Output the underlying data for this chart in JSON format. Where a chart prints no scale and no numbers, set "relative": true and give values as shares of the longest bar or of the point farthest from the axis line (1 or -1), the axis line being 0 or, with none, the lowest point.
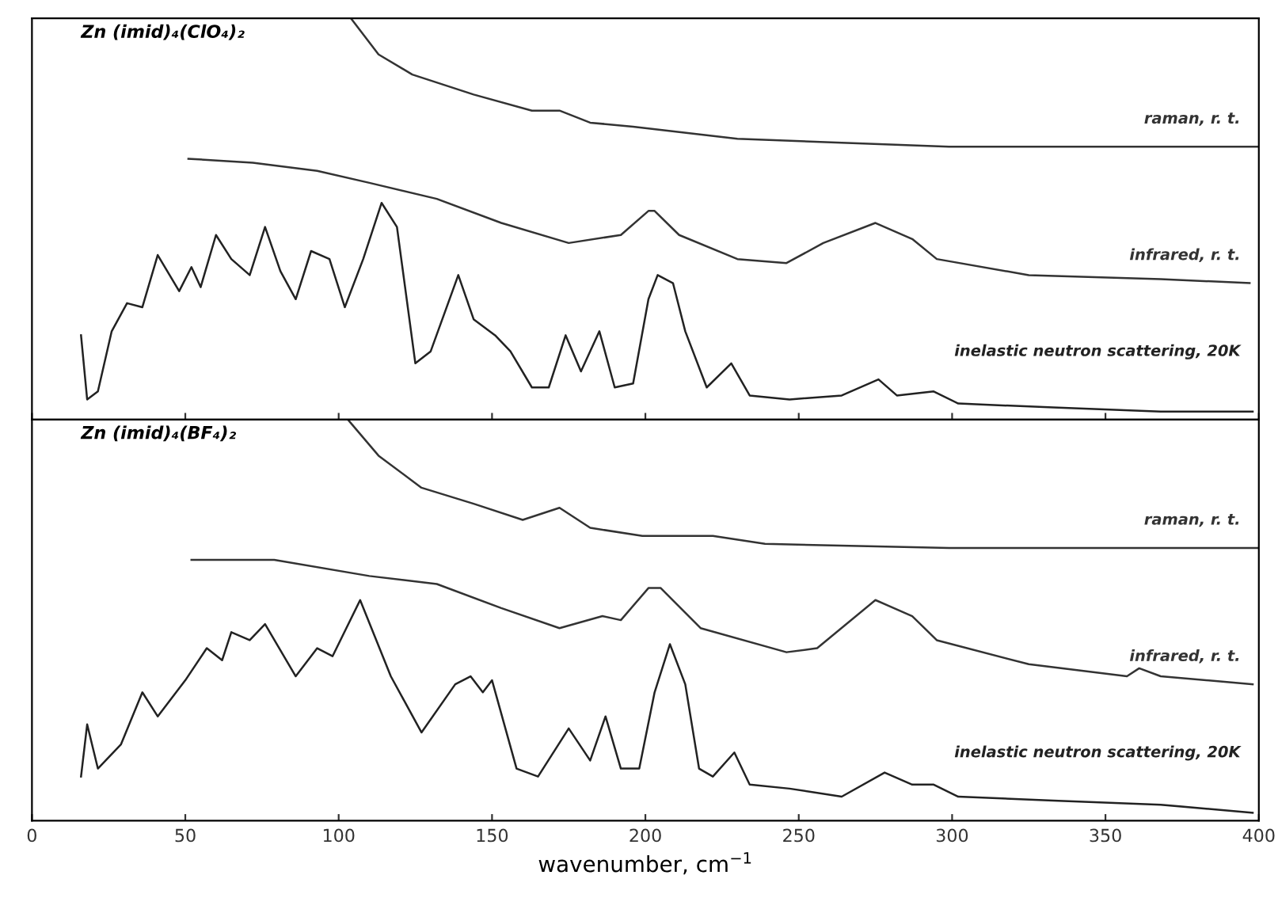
{
  "chart_data": [
    {
      "type": "line",
      "relative": true,
      "annotations": [
        "Zn (imid)₄(ClO₄)₂"
      ],
      "xlim": [
        0,
        400
      ],
      "xticks": [
        0,
        50,
        100,
        150,
        200,
        250,
        300,
        350,
        400
      ],
      "tick_labels": false,
      "grid": false,
      "legend": false,
      "line_style": "solid",
      "marker": "none",
      "series": [
        {
          "name": "raman, r. t.",
          "color": "#333333",
          "x": [
            104,
            113,
            124,
            144,
            163,
            172,
            182,
            196,
            230,
            264,
            299,
            400
          ],
          "values": [
            1.0,
            0.91,
            0.86,
            0.81,
            0.77,
            0.77,
            0.74,
            0.73,
            0.7,
            0.69,
            0.68,
            0.68
          ]
        },
        {
          "name": "infrared, r. t.",
          "color": "#333333",
          "x": [
            51,
            72,
            93,
            110,
            132,
            153,
            175,
            192,
            201,
            203,
            211,
            230,
            246,
            258,
            275,
            287,
            295,
            325,
            368,
            397
          ],
          "values": [
            0.65,
            0.64,
            0.62,
            0.59,
            0.55,
            0.49,
            0.44,
            0.46,
            0.52,
            0.52,
            0.46,
            0.4,
            0.39,
            0.44,
            0.49,
            0.45,
            0.4,
            0.36,
            0.35,
            0.34
          ]
        },
        {
          "name": "inelastic neutron scattering, 20K",
          "color": "#222222",
          "x": [
            16,
            18,
            21.5,
            26,
            31,
            36,
            41,
            48,
            52,
            55,
            60,
            65,
            71,
            76,
            81,
            86,
            91,
            97,
            102,
            108,
            114,
            119,
            125,
            130,
            139,
            144,
            151,
            156,
            163,
            168.5,
            174,
            179,
            185,
            190,
            196,
            201,
            204,
            209,
            213,
            220,
            228,
            234,
            247,
            264,
            276,
            282,
            294,
            302,
            333,
            368,
            398
          ],
          "values": [
            0.21,
            0.05,
            0.07,
            0.22,
            0.29,
            0.28,
            0.41,
            0.32,
            0.38,
            0.33,
            0.46,
            0.4,
            0.36,
            0.48,
            0.37,
            0.3,
            0.42,
            0.4,
            0.28,
            0.4,
            0.54,
            0.48,
            0.14,
            0.17,
            0.36,
            0.25,
            0.21,
            0.17,
            0.08,
            0.08,
            0.21,
            0.12,
            0.22,
            0.08,
            0.09,
            0.3,
            0.36,
            0.34,
            0.22,
            0.08,
            0.14,
            0.06,
            0.05,
            0.06,
            0.1,
            0.06,
            0.07,
            0.04,
            0.03,
            0.02,
            0.02
          ]
        }
      ]
    },
    {
      "type": "line",
      "relative": true,
      "annotations": [
        "Zn (imid)₄(BF₄)₂"
      ],
      "xlabel": "wavenumber, cm$^{−1}$",
      "xlim": [
        0,
        400
      ],
      "xticks": [
        0,
        50,
        100,
        150,
        200,
        250,
        300,
        350,
        400
      ],
      "tick_labels": "x",
      "grid": false,
      "legend": false,
      "line_style": "solid",
      "marker": "none",
      "series": [
        {
          "name": "raman, r. t.",
          "color": "#333333",
          "x": [
            103,
            113,
            127,
            144,
            160,
            172,
            182,
            199,
            222,
            239,
            299,
            400
          ],
          "values": [
            1.0,
            0.91,
            0.83,
            0.79,
            0.75,
            0.78,
            0.73,
            0.71,
            0.71,
            0.69,
            0.68,
            0.68
          ]
        },
        {
          "name": "infrared, r. t.",
          "color": "#333333",
          "x": [
            52,
            79,
            110,
            132,
            153,
            172,
            186,
            192,
            201,
            205,
            218,
            246,
            256,
            275,
            287,
            295,
            325,
            357,
            361,
            368,
            398
          ],
          "values": [
            0.65,
            0.65,
            0.61,
            0.59,
            0.53,
            0.48,
            0.51,
            0.5,
            0.58,
            0.58,
            0.48,
            0.42,
            0.43,
            0.55,
            0.51,
            0.45,
            0.39,
            0.36,
            0.38,
            0.36,
            0.34
          ]
        },
        {
          "name": "inelastic neutron scattering, 20K",
          "color": "#222222",
          "x": [
            16,
            18,
            21.5,
            29,
            36,
            41,
            50,
            57,
            62,
            65,
            71,
            76,
            86,
            93,
            98,
            107,
            117,
            127,
            138,
            143,
            147,
            150,
            158,
            165,
            175,
            182,
            187,
            192,
            198,
            203,
            208,
            213,
            217.5,
            222,
            229,
            234,
            247,
            264,
            278,
            287,
            294,
            302,
            333,
            368,
            398
          ],
          "values": [
            0.11,
            0.24,
            0.13,
            0.19,
            0.32,
            0.26,
            0.35,
            0.43,
            0.4,
            0.47,
            0.45,
            0.49,
            0.36,
            0.43,
            0.41,
            0.55,
            0.36,
            0.22,
            0.34,
            0.36,
            0.32,
            0.35,
            0.13,
            0.11,
            0.23,
            0.15,
            0.26,
            0.13,
            0.13,
            0.32,
            0.44,
            0.34,
            0.13,
            0.11,
            0.17,
            0.09,
            0.08,
            0.06,
            0.12,
            0.09,
            0.09,
            0.06,
            0.05,
            0.04,
            0.02
          ]
        }
      ]
    }
  ]
}
